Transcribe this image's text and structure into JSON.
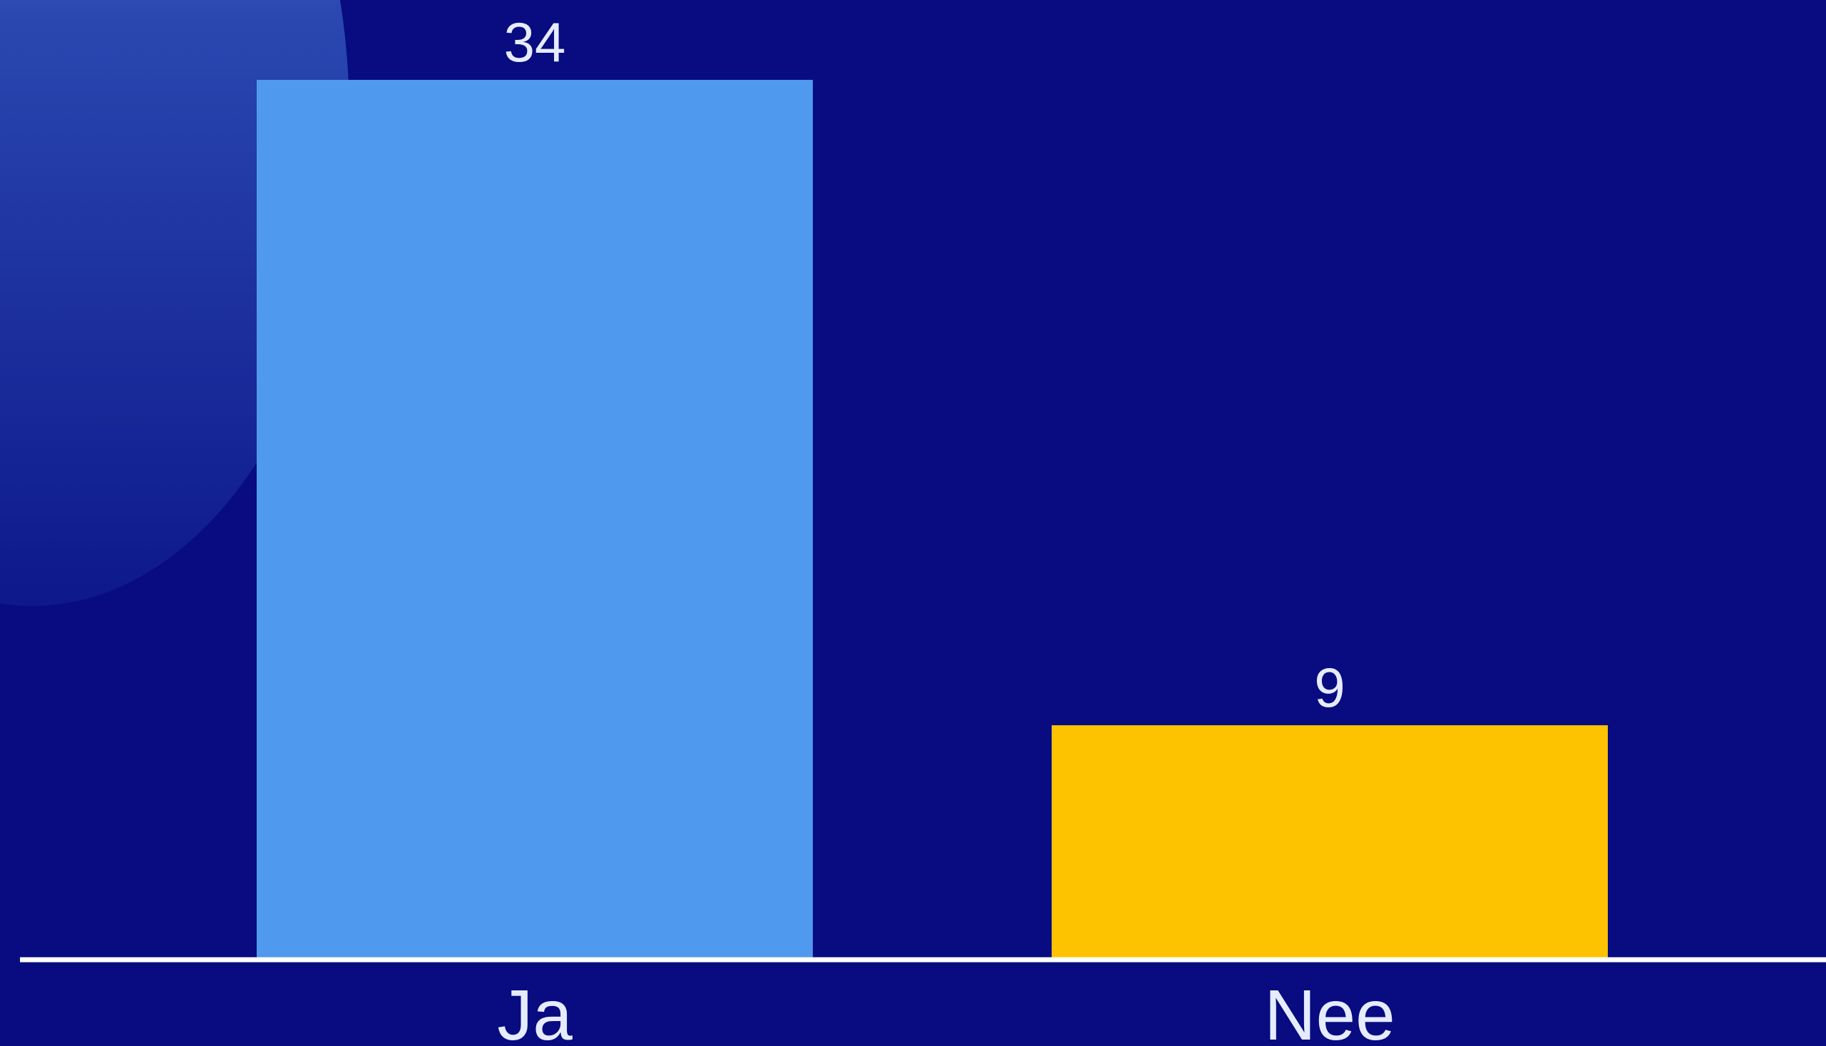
{
  "chart_data": {
    "type": "bar",
    "categories": [
      "Ja",
      "Nee"
    ],
    "values": [
      34,
      9
    ],
    "colors": [
      "#4f99ee",
      "#fdc300"
    ],
    "value_labels": [
      "34",
      "9"
    ],
    "title": "",
    "xlabel": "",
    "ylabel": "",
    "ylim": [
      0,
      34
    ],
    "grid": false
  },
  "colors": {
    "background": "#080c80",
    "baseline": "#ffffff",
    "text": "#e6ecff"
  }
}
